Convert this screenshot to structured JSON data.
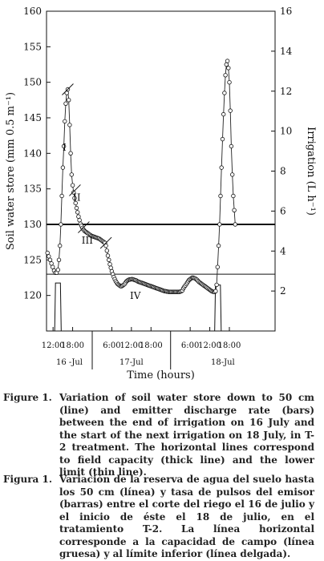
{
  "chart_data": {
    "type": "line",
    "y_left": {
      "label": "Soil water store (mm 0.5 m⁻¹)",
      "range": [
        115,
        160
      ],
      "ticks": [
        120,
        125,
        130,
        135,
        140,
        145,
        150,
        155,
        160
      ]
    },
    "y_right": {
      "label": "Irrigation (L h⁻¹)",
      "range": [
        0,
        16
      ],
      "ticks": [
        2,
        4,
        6,
        8,
        10,
        12,
        14,
        16
      ]
    },
    "x": {
      "label": "Time (hours)",
      "range_hours": [
        -14,
        56
      ],
      "tick_labels": [
        "12:00",
        "18:00",
        "6:00",
        "12:00",
        "18:00",
        "6:00",
        "12:00",
        "18:00"
      ],
      "tick_hours": [
        -12,
        -6,
        6,
        12,
        18,
        30,
        36,
        42
      ],
      "days": [
        {
          "label": "16 -Jul",
          "start": -14,
          "end": 0
        },
        {
          "label": "17-Jul",
          "start": 0,
          "end": 24
        },
        {
          "label": "18-Jul",
          "start": 24,
          "end": 56
        }
      ]
    },
    "series": [
      {
        "values": [
          [
            -13.7,
            126
          ],
          [
            -13.3,
            125.5
          ],
          [
            -12.9,
            125
          ],
          [
            -12.5,
            124.5
          ],
          [
            -12.1,
            124
          ],
          [
            -11.7,
            123.5
          ],
          [
            -11.3,
            123.2
          ],
          [
            -10.9,
            123.2
          ],
          [
            -10.5,
            123.6
          ],
          [
            -10.2,
            125
          ],
          [
            -9.9,
            127
          ],
          [
            -9.6,
            130
          ],
          [
            -9.3,
            134
          ],
          [
            -9,
            138
          ],
          [
            -8.7,
            141
          ],
          [
            -8.4,
            144.5
          ],
          [
            -8.1,
            147
          ],
          [
            -7.8,
            148.5
          ],
          [
            -7.5,
            149
          ],
          [
            -7.2,
            147.5
          ],
          [
            -6.9,
            144
          ],
          [
            -6.6,
            140
          ],
          [
            -6.3,
            137
          ],
          [
            -6,
            135.5
          ],
          [
            -5.7,
            134.5
          ],
          [
            -5.4,
            133.7
          ],
          [
            -5.1,
            133
          ],
          [
            -4.8,
            132.3
          ],
          [
            -4.5,
            131.7
          ],
          [
            -4.2,
            131.1
          ],
          [
            -3.9,
            130.6
          ],
          [
            -3.6,
            130.1
          ],
          [
            -3.3,
            129.8
          ],
          [
            -3,
            129.5
          ],
          [
            -2.7,
            129.3
          ],
          [
            -2.4,
            129.1
          ],
          [
            -2.1,
            129
          ],
          [
            -1.8,
            128.9
          ],
          [
            -1.5,
            128.8
          ],
          [
            -1.2,
            128.7
          ],
          [
            -0.9,
            128.6
          ],
          [
            -0.6,
            128.5
          ],
          [
            -0.3,
            128.4
          ],
          [
            0,
            128.35
          ],
          [
            0.3,
            128.3
          ],
          [
            0.6,
            128.25
          ],
          [
            0.9,
            128.2
          ],
          [
            1.2,
            128.15
          ],
          [
            1.5,
            128.1
          ],
          [
            1.8,
            128.05
          ],
          [
            2.1,
            128
          ],
          [
            2.4,
            127.9
          ],
          [
            2.7,
            127.8
          ],
          [
            3,
            127.7
          ],
          [
            3.3,
            127.6
          ],
          [
            3.6,
            127.5
          ],
          [
            3.9,
            127.4
          ],
          [
            4.2,
            127
          ],
          [
            4.5,
            126.3
          ],
          [
            4.8,
            125.6
          ],
          [
            5.1,
            125
          ],
          [
            5.4,
            124.4
          ],
          [
            5.7,
            123.9
          ],
          [
            6,
            123.4
          ],
          [
            6.3,
            123
          ],
          [
            6.6,
            122.6
          ],
          [
            6.9,
            122.3
          ],
          [
            7.2,
            122
          ],
          [
            7.5,
            121.8
          ],
          [
            7.8,
            121.6
          ],
          [
            8.1,
            121.5
          ],
          [
            8.4,
            121.4
          ],
          [
            8.7,
            121.3
          ],
          [
            9,
            121.3
          ],
          [
            9.3,
            121.4
          ],
          [
            9.6,
            121.5
          ],
          [
            9.9,
            121.6
          ],
          [
            10.2,
            121.8
          ],
          [
            10.5,
            122
          ],
          [
            10.8,
            122.1
          ],
          [
            11.1,
            122.2
          ],
          [
            11.4,
            122.25
          ],
          [
            11.7,
            122.25
          ],
          [
            12,
            122.3
          ],
          [
            12.3,
            122.3
          ],
          [
            12.6,
            122.25
          ],
          [
            12.9,
            122.2
          ],
          [
            13.2,
            122.15
          ],
          [
            13.5,
            122.1
          ],
          [
            13.8,
            122
          ],
          [
            14.1,
            121.95
          ],
          [
            14.4,
            121.9
          ],
          [
            14.7,
            121.85
          ],
          [
            15,
            121.8
          ],
          [
            15.3,
            121.75
          ],
          [
            15.6,
            121.7
          ],
          [
            15.9,
            121.65
          ],
          [
            16.2,
            121.6
          ],
          [
            16.5,
            121.55
          ],
          [
            16.8,
            121.5
          ],
          [
            17.1,
            121.45
          ],
          [
            17.4,
            121.4
          ],
          [
            17.7,
            121.35
          ],
          [
            18,
            121.3
          ],
          [
            18.3,
            121.25
          ],
          [
            18.6,
            121.2
          ],
          [
            18.9,
            121.15
          ],
          [
            19.2,
            121.1
          ],
          [
            19.5,
            121.05
          ],
          [
            19.8,
            121
          ],
          [
            20.1,
            120.95
          ],
          [
            20.4,
            120.9
          ],
          [
            20.7,
            120.85
          ],
          [
            21,
            120.8
          ],
          [
            21.3,
            120.75
          ],
          [
            21.6,
            120.7
          ],
          [
            21.9,
            120.65
          ],
          [
            22.2,
            120.6
          ],
          [
            22.5,
            120.6
          ],
          [
            22.8,
            120.55
          ],
          [
            23.1,
            120.55
          ],
          [
            23.4,
            120.5
          ],
          [
            23.7,
            120.5
          ],
          [
            24,
            120.5
          ],
          [
            24.3,
            120.5
          ],
          [
            24.6,
            120.5
          ],
          [
            24.9,
            120.5
          ],
          [
            25.2,
            120.5
          ],
          [
            25.5,
            120.5
          ],
          [
            25.8,
            120.5
          ],
          [
            26.1,
            120.5
          ],
          [
            26.4,
            120.5
          ],
          [
            26.7,
            120.5
          ],
          [
            27,
            120.55
          ],
          [
            27.3,
            120.6
          ],
          [
            27.6,
            120.7
          ],
          [
            27.9,
            121
          ],
          [
            28.2,
            121.2
          ],
          [
            28.5,
            121.4
          ],
          [
            28.8,
            121.6
          ],
          [
            29.1,
            121.8
          ],
          [
            29.4,
            122
          ],
          [
            29.7,
            122.2
          ],
          [
            30,
            122.3
          ],
          [
            30.3,
            122.4
          ],
          [
            30.6,
            122.5
          ],
          [
            30.9,
            122.5
          ],
          [
            31.2,
            122.45
          ],
          [
            31.5,
            122.4
          ],
          [
            31.8,
            122.3
          ],
          [
            32.1,
            122.2
          ],
          [
            32.4,
            122.05
          ],
          [
            32.7,
            121.9
          ],
          [
            33,
            121.8
          ],
          [
            33.3,
            121.7
          ],
          [
            33.6,
            121.6
          ],
          [
            33.9,
            121.5
          ],
          [
            34.2,
            121.4
          ],
          [
            34.5,
            121.3
          ],
          [
            34.8,
            121.2
          ],
          [
            35.1,
            121.1
          ],
          [
            35.4,
            121
          ],
          [
            35.7,
            120.9
          ],
          [
            36,
            120.8
          ],
          [
            36.3,
            120.7
          ],
          [
            36.6,
            120.6
          ],
          [
            36.9,
            120.55
          ],
          [
            37.2,
            120.5
          ],
          [
            37.5,
            120.5
          ],
          [
            37.8,
            120.6
          ],
          [
            38.1,
            121.5
          ],
          [
            38.4,
            124
          ],
          [
            38.7,
            127
          ],
          [
            39,
            130
          ],
          [
            39.3,
            134
          ],
          [
            39.6,
            138
          ],
          [
            39.9,
            142
          ],
          [
            40.2,
            145.5
          ],
          [
            40.5,
            148.5
          ],
          [
            40.8,
            151
          ],
          [
            41.1,
            152.5
          ],
          [
            41.4,
            153
          ],
          [
            41.7,
            152
          ],
          [
            42,
            150
          ],
          [
            42.3,
            146
          ],
          [
            42.6,
            141
          ],
          [
            42.9,
            137
          ],
          [
            43.2,
            134
          ],
          [
            43.5,
            132
          ],
          [
            43.8,
            130
          ]
        ]
      }
    ],
    "reference_lines": [
      {
        "y": 130,
        "style": "thick"
      },
      {
        "y": 123,
        "style": "thin"
      }
    ],
    "irrigation_pulses": [
      {
        "start": -11.5,
        "end": -9.5,
        "rate": 2.4
      },
      {
        "start": 37.5,
        "end": 39.5,
        "rate": 2.3
      }
    ],
    "phase_markers": [
      {
        "label": "I",
        "x": -7.5,
        "y": 149,
        "at": [
          -8.5,
          140.4
        ]
      },
      {
        "label": "II",
        "x": -5.3,
        "y": 134.8,
        "at": [
          -4.7,
          133.3
        ]
      },
      {
        "label": "III",
        "x": -2.6,
        "y": 129.6,
        "at": [
          -1.5,
          127.3
        ]
      },
      {
        "label": "IV",
        "x": 4.2,
        "y": 127.4,
        "at": [
          13.2,
          119.5
        ]
      }
    ]
  },
  "captions": {
    "english": {
      "label": "Figure 1.",
      "text": "Variation of soil water store down to 50 cm (line) and emitter discharge rate (bars) between the end of irrigation on 16 July and the start of the next irrigation on 18 July, in T-2 treatment. The horizontal lines correspond to field capacity (thick line) and the lower limit (thin line)."
    },
    "spanish": {
      "label": "Figura 1.",
      "text": "Variación de la reserva de agua del suelo hasta los 50 cm (línea) y tasa de pulsos del emisor (barras) entre el corte del riego el 16 de julio y el inicio de éste el 18 de julio, en el tratamiento T-2. La línea horizontal corresponde a la capacidad de campo (línea gruesa) y al límite inferior (línea delgada)."
    }
  }
}
